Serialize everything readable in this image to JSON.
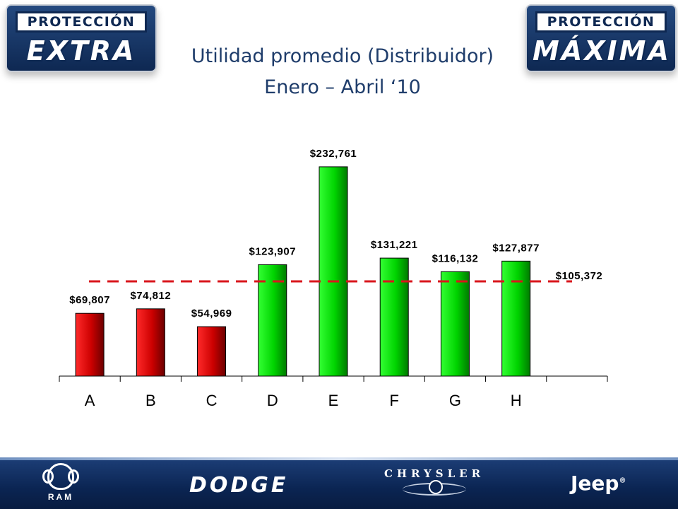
{
  "title": {
    "line1": "Utilidad promedio (Distribuidor)",
    "line2": "Enero – Abril ‘10"
  },
  "logos": {
    "left": {
      "top": "PROTECCIÓN",
      "big": "EXTRA"
    },
    "right": {
      "top": "PROTECCIÓN",
      "big": "MÁXIMA"
    }
  },
  "chart_data": {
    "type": "bar",
    "categories": [
      "A",
      "B",
      "C",
      "D",
      "E",
      "F",
      "G",
      "H"
    ],
    "values": [
      69807,
      74812,
      54969,
      123907,
      232761,
      131221,
      116132,
      127877
    ],
    "data_labels": [
      "$69,807",
      "$74,812",
      "$54,969",
      "$123,907",
      "$232,761",
      "$131,221",
      "$116,132",
      "$127,877"
    ],
    "reference_line": {
      "value": 105372,
      "label": "$105,372",
      "style": "dashed",
      "color": "#d9161c"
    },
    "below_reference_color": "#d40000",
    "above_reference_color": "#00d800",
    "ylim": [
      0,
      250000
    ],
    "grid": false,
    "title": "",
    "xlabel": "",
    "ylabel": ""
  },
  "footer": {
    "brands": [
      "RAM",
      "DODGE",
      "CHRYSLER",
      "Jeep"
    ],
    "background": "#0b2553"
  }
}
